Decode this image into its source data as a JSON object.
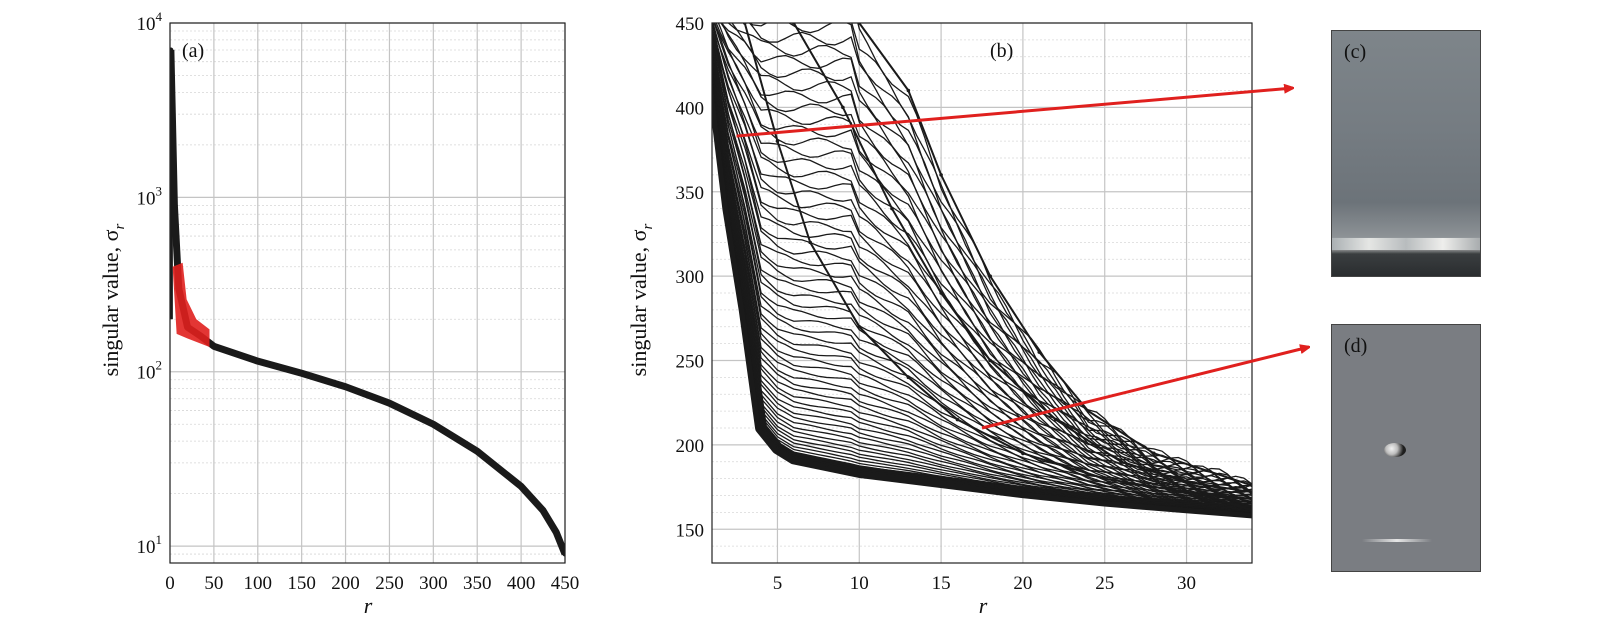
{
  "chart_data": [
    {
      "type": "line",
      "panel_label": "(a)",
      "xlabel": "r",
      "ylabel": "singular value, σ",
      "ylabel_subscript": "r",
      "xlim": [
        0,
        450
      ],
      "ylim": [
        8,
        10000
      ],
      "yscale": "log",
      "grid": true,
      "x_ticks": [
        "0",
        "50",
        "100",
        "150",
        "200",
        "250",
        "300",
        "350",
        "400",
        "450"
      ],
      "y_ticks": [
        {
          "base": "10",
          "exp": "1",
          "value": 10
        },
        {
          "base": "10",
          "exp": "2",
          "value": 100
        },
        {
          "base": "10",
          "exp": "3",
          "value": 1000
        },
        {
          "base": "10",
          "exp": "4",
          "value": 10000
        }
      ],
      "series": [
        {
          "color": "#1a1a1a",
          "x": [
            1,
            5,
            10,
            20,
            35,
            50,
            100,
            150,
            200,
            250,
            300,
            350,
            400,
            425,
            440,
            450
          ],
          "y": [
            7000,
            900,
            300,
            180,
            160,
            140,
            115,
            98,
            82,
            66,
            50,
            35,
            22,
            16,
            12,
            9
          ]
        }
      ],
      "highlight": {
        "color": "#e0201e",
        "x_range": [
          3,
          45
        ],
        "y_range": [
          150,
          400
        ]
      }
    },
    {
      "type": "line",
      "panel_label": "(b)",
      "xlabel": "r",
      "ylabel": "singular value, σ",
      "ylabel_subscript": "r",
      "xlim": [
        1,
        34
      ],
      "ylim": [
        130,
        450
      ],
      "grid": true,
      "x_ticks": [
        "5",
        "10",
        "15",
        "20",
        "25",
        "30"
      ],
      "y_ticks": [
        "150",
        "200",
        "250",
        "300",
        "350",
        "400",
        "450"
      ],
      "series": [
        {
          "color": "#1a1a1a",
          "x": [
            1,
            2,
            3,
            4,
            5,
            6,
            8,
            10,
            15,
            20,
            25,
            30,
            34
          ],
          "y": [
            420,
            340,
            280,
            210,
            198,
            192,
            188,
            184,
            178,
            172,
            167,
            163,
            160
          ]
        },
        {
          "color": "#1a1a1a",
          "x": [
            3,
            5,
            7,
            10,
            13,
            16,
            20,
            25,
            30,
            34
          ],
          "y": [
            450,
            380,
            320,
            270,
            240,
            215,
            195,
            180,
            172,
            168
          ]
        },
        {
          "color": "#1a1a1a",
          "x": [
            6,
            9,
            12,
            15,
            18,
            22,
            26,
            30,
            34
          ],
          "y": [
            450,
            400,
            340,
            290,
            250,
            215,
            190,
            178,
            172
          ]
        },
        {
          "color": "#1a1a1a",
          "x": [
            10,
            13,
            15,
            18,
            21,
            24,
            28,
            34
          ],
          "y": [
            450,
            410,
            360,
            300,
            255,
            220,
            195,
            176
          ]
        }
      ],
      "arrows": [
        {
          "from": [
            2.5,
            383
          ],
          "color": "#e0201e"
        },
        {
          "from": [
            17.5,
            210
          ],
          "color": "#e0201e"
        }
      ]
    }
  ],
  "photos": [
    {
      "label": "(c)"
    },
    {
      "label": "(d)"
    }
  ]
}
